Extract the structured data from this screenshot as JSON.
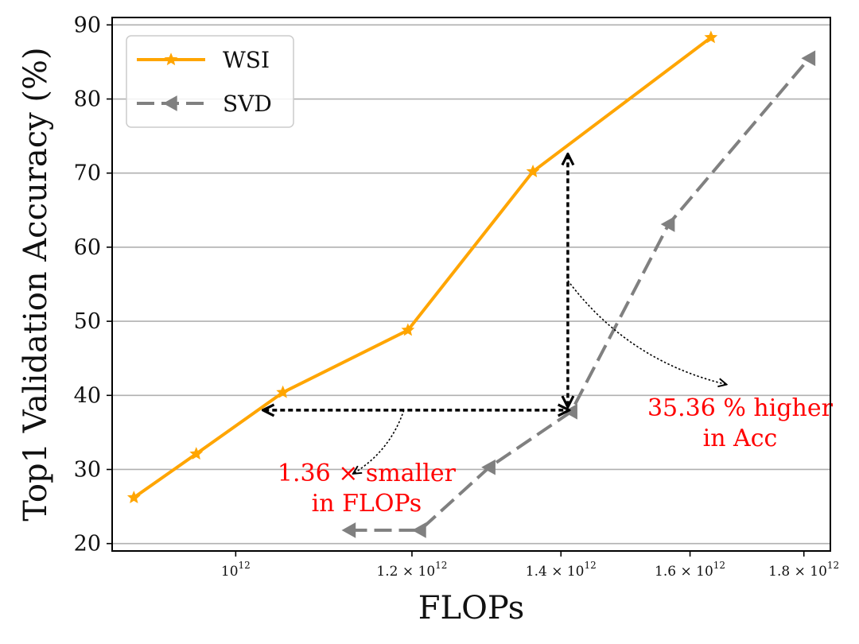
{
  "chart_data": {
    "type": "line",
    "xlabel": "FLOPs",
    "ylabel": "Top1 Validation Accuracy (%)",
    "x_scale": "log",
    "xlim": [
      880000000000,
      1850000000000
    ],
    "ylim": [
      19,
      91
    ],
    "grid": "horizontal",
    "legend_position": "top-left",
    "y_ticks": [
      20,
      30,
      40,
      50,
      60,
      70,
      80,
      90
    ],
    "x_ticks": [
      {
        "value": 1000000000000,
        "mantissa": "",
        "base": "10",
        "exp": "12"
      },
      {
        "value": 1200000000000,
        "mantissa": "1.2",
        "base": "10",
        "exp": "12"
      },
      {
        "value": 1400000000000,
        "mantissa": "1.4",
        "base": "10",
        "exp": "12"
      },
      {
        "value": 1600000000000,
        "mantissa": "1.6",
        "base": "10",
        "exp": "12"
      },
      {
        "value": 1800000000000,
        "mantissa": "1.8",
        "base": "10",
        "exp": "12"
      }
    ],
    "series": [
      {
        "name": "WSI",
        "color": "#FFA500",
        "marker": "star",
        "style": "solid",
        "points": [
          {
            "x": 900000000000,
            "y": 26.2
          },
          {
            "x": 960000000000,
            "y": 32.1
          },
          {
            "x": 1050000000000,
            "y": 40.4
          },
          {
            "x": 1195000000000,
            "y": 48.8
          },
          {
            "x": 1360000000000,
            "y": 70.2
          },
          {
            "x": 1635000000000,
            "y": 88.3
          }
        ]
      },
      {
        "name": "SVD",
        "color": "#808080",
        "marker": "triangle-left",
        "style": "dashed",
        "points": [
          {
            "x": 1125000000000,
            "y": 21.8
          },
          {
            "x": 1210000000000,
            "y": 21.8
          },
          {
            "x": 1300000000000,
            "y": 30.3
          },
          {
            "x": 1415000000000,
            "y": 37.8
          },
          {
            "x": 1565000000000,
            "y": 63.1
          },
          {
            "x": 1810000000000,
            "y": 85.5
          }
        ]
      }
    ],
    "annotations": [
      {
        "lines": [
          "1.36 × smaller",
          "in FLOPs"
        ],
        "color": "#FF0000",
        "arrow": {
          "x1": 1030000000000,
          "x2": 1410000000000,
          "y": 38.0
        },
        "pointer_from": {
          "x": 1190000000000,
          "y": 38.0
        },
        "pointer_to": {
          "x": 1130000000000,
          "y": 29.5
        },
        "text_anchor": {
          "x": 1145000000000,
          "y": 29.5
        }
      },
      {
        "lines": [
          "35.36 % higher",
          "in Acc"
        ],
        "color": "#FF0000",
        "arrow": {
          "x": 1410000000000,
          "y1": 38.6,
          "y2": 72.4
        },
        "pointer_from": {
          "x": 1410000000000,
          "y": 55.5
        },
        "pointer_to": {
          "x": 1660000000000,
          "y": 41.5
        },
        "text_anchor": {
          "x": 1685000000000,
          "y": 38.3
        }
      }
    ]
  }
}
